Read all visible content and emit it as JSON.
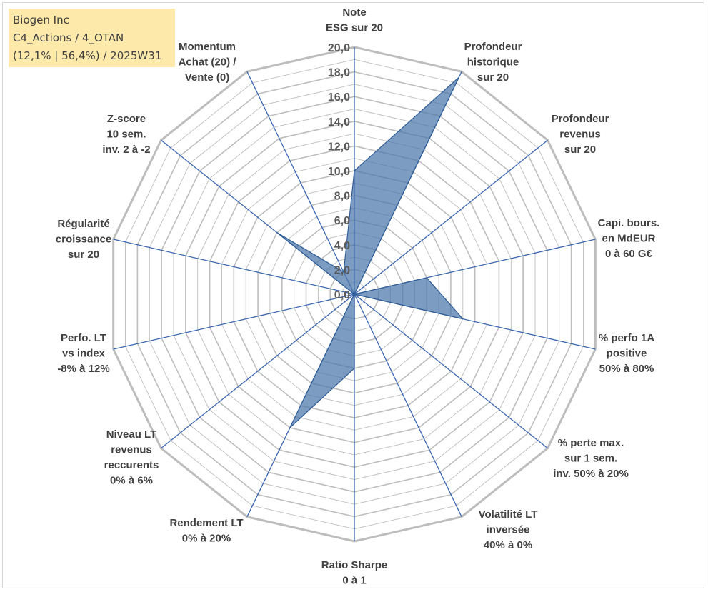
{
  "info": {
    "line1": "Biogen Inc",
    "line2": "C4_Actions / 4_OTAN",
    "line3": "(12,1% | 56,4%) / 2025W31"
  },
  "chart_data": {
    "type": "radar",
    "title": "",
    "rlim": [
      0,
      20
    ],
    "grid": true,
    "ticks": [
      "0,0",
      "2,0",
      "4,0",
      "6,0",
      "8,0",
      "10,0",
      "12,0",
      "14,0",
      "16,0",
      "18,0",
      "20,0"
    ],
    "categories": [
      "Note\nESG sur 20",
      "Profondeur\nhistorique\nsur 20",
      "Profondeur\nrevenus\nsur 20",
      "Capi. bours.\nen MdEUR\n0 à 60 G€",
      "% perfo 1A\npositive\n50% à 80%",
      "% perte max.\nsur 1 sem.\ninv. 50% à 20%",
      "Volatilité LT\ninversée\n40% à 0%",
      "Ratio Sharpe\n0 à 1",
      "Rendement LT\n0% à 20%",
      "Niveau LT\nrevenus\nreccurents\n0% à 6%",
      "Perfo. LT\nvs index\n-8% à 12%",
      "Régularité\ncroissance\nsur 20",
      "Z-score\n10 sem.\ninv. 2 à -2",
      "Momentum\nAchat (20) /\nVente (0)"
    ],
    "series": [
      {
        "values": [
          10.0,
          19.5,
          0.0,
          6.0,
          9.0,
          0.0,
          0.0,
          6.0,
          12.0,
          0.0,
          0.0,
          0.0,
          8.0,
          2.0
        ]
      }
    ],
    "colors": {
      "fill": "#4a76ab",
      "fill_opacity": 0.72,
      "stroke": "#2f5d96",
      "grid": "#bdbdbd",
      "spoke": "#3b66b0"
    }
  }
}
